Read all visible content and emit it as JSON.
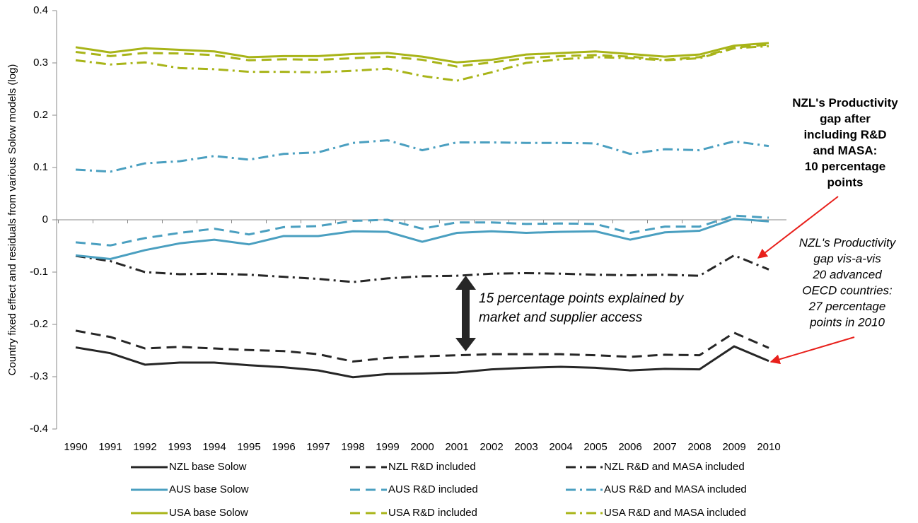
{
  "chart_data": {
    "type": "line",
    "y_label": "Country fixed effect and residuals from various Solow models (log)",
    "categories": [
      "1990",
      "1991",
      "1992",
      "1993",
      "1994",
      "1995",
      "1996",
      "1997",
      "1998",
      "1999",
      "2000",
      "2001",
      "2002",
      "2003",
      "2004",
      "2005",
      "2006",
      "2007",
      "2008",
      "2009",
      "2010"
    ],
    "ylim": [
      -0.4,
      0.4
    ],
    "yticks": [
      -0.4,
      -0.3,
      -0.2,
      -0.1,
      0,
      0.1,
      0.2,
      0.3,
      0.4
    ],
    "series": [
      {
        "name": "NZL base Solow",
        "color": "#262626",
        "style": "solid",
        "values": [
          -0.244,
          -0.255,
          -0.277,
          -0.273,
          -0.273,
          -0.278,
          -0.282,
          -0.288,
          -0.301,
          -0.295,
          -0.294,
          -0.292,
          -0.286,
          -0.283,
          -0.281,
          -0.283,
          -0.288,
          -0.285,
          -0.286,
          -0.242,
          -0.27
        ]
      },
      {
        "name": "NZL R&D included",
        "color": "#262626",
        "style": "dashed",
        "values": [
          -0.212,
          -0.224,
          -0.246,
          -0.243,
          -0.246,
          -0.249,
          -0.251,
          -0.257,
          -0.271,
          -0.264,
          -0.261,
          -0.259,
          -0.257,
          -0.257,
          -0.257,
          -0.259,
          -0.262,
          -0.258,
          -0.259,
          -0.216,
          -0.245
        ]
      },
      {
        "name": "NZL R&D and MASA included",
        "color": "#262626",
        "style": "dash-dot",
        "values": [
          -0.069,
          -0.079,
          -0.1,
          -0.104,
          -0.103,
          -0.105,
          -0.109,
          -0.113,
          -0.119,
          -0.112,
          -0.108,
          -0.107,
          -0.103,
          -0.102,
          -0.103,
          -0.105,
          -0.106,
          -0.105,
          -0.107,
          -0.068,
          -0.095
        ]
      },
      {
        "name": "AUS base Solow",
        "color": "#4a9fc0",
        "style": "solid",
        "values": [
          -0.068,
          -0.075,
          -0.058,
          -0.045,
          -0.038,
          -0.047,
          -0.031,
          -0.031,
          -0.022,
          -0.023,
          -0.042,
          -0.025,
          -0.022,
          -0.025,
          -0.023,
          -0.022,
          -0.038,
          -0.024,
          -0.021,
          0.002,
          -0.003
        ]
      },
      {
        "name": "AUS R&D included",
        "color": "#4a9fc0",
        "style": "dashed",
        "values": [
          -0.043,
          -0.049,
          -0.035,
          -0.025,
          -0.017,
          -0.028,
          -0.014,
          -0.012,
          -0.002,
          0.0,
          -0.017,
          -0.005,
          -0.005,
          -0.008,
          -0.007,
          -0.008,
          -0.025,
          -0.013,
          -0.013,
          0.008,
          0.004
        ]
      },
      {
        "name": "AUS R&D and MASA included",
        "color": "#4a9fc0",
        "style": "dash-dot",
        "values": [
          0.096,
          0.092,
          0.108,
          0.112,
          0.122,
          0.115,
          0.126,
          0.129,
          0.147,
          0.152,
          0.133,
          0.148,
          0.148,
          0.147,
          0.147,
          0.146,
          0.126,
          0.135,
          0.133,
          0.15,
          0.141
        ]
      },
      {
        "name": "USA base Solow",
        "color": "#a8b418",
        "style": "solid",
        "values": [
          0.33,
          0.32,
          0.328,
          0.325,
          0.322,
          0.311,
          0.313,
          0.313,
          0.317,
          0.319,
          0.312,
          0.301,
          0.306,
          0.316,
          0.319,
          0.322,
          0.317,
          0.312,
          0.316,
          0.333,
          0.338
        ]
      },
      {
        "name": "USA R&D included",
        "color": "#a8b418",
        "style": "dashed",
        "values": [
          0.321,
          0.313,
          0.319,
          0.318,
          0.315,
          0.305,
          0.307,
          0.306,
          0.309,
          0.312,
          0.306,
          0.293,
          0.301,
          0.309,
          0.313,
          0.315,
          0.312,
          0.306,
          0.311,
          0.329,
          0.335
        ]
      },
      {
        "name": "USA R&D and MASA included",
        "color": "#a8b418",
        "style": "dash-dot",
        "values": [
          0.305,
          0.297,
          0.301,
          0.29,
          0.288,
          0.283,
          0.283,
          0.282,
          0.285,
          0.289,
          0.275,
          0.266,
          0.282,
          0.3,
          0.307,
          0.311,
          0.309,
          0.305,
          0.309,
          0.328,
          0.332
        ]
      }
    ],
    "annotations": {
      "gap_after": [
        "NZL's Productivity",
        "gap after",
        "including R&D",
        "and MASA:",
        "10 percentage",
        "points"
      ],
      "gap_total": [
        "NZL's Productivity",
        "gap vis-a-vis",
        "20 advanced",
        "OECD countries:",
        "27 percentage",
        "points in 2010"
      ],
      "explained": [
        "15 percentage points explained by",
        "market and supplier access"
      ]
    }
  }
}
